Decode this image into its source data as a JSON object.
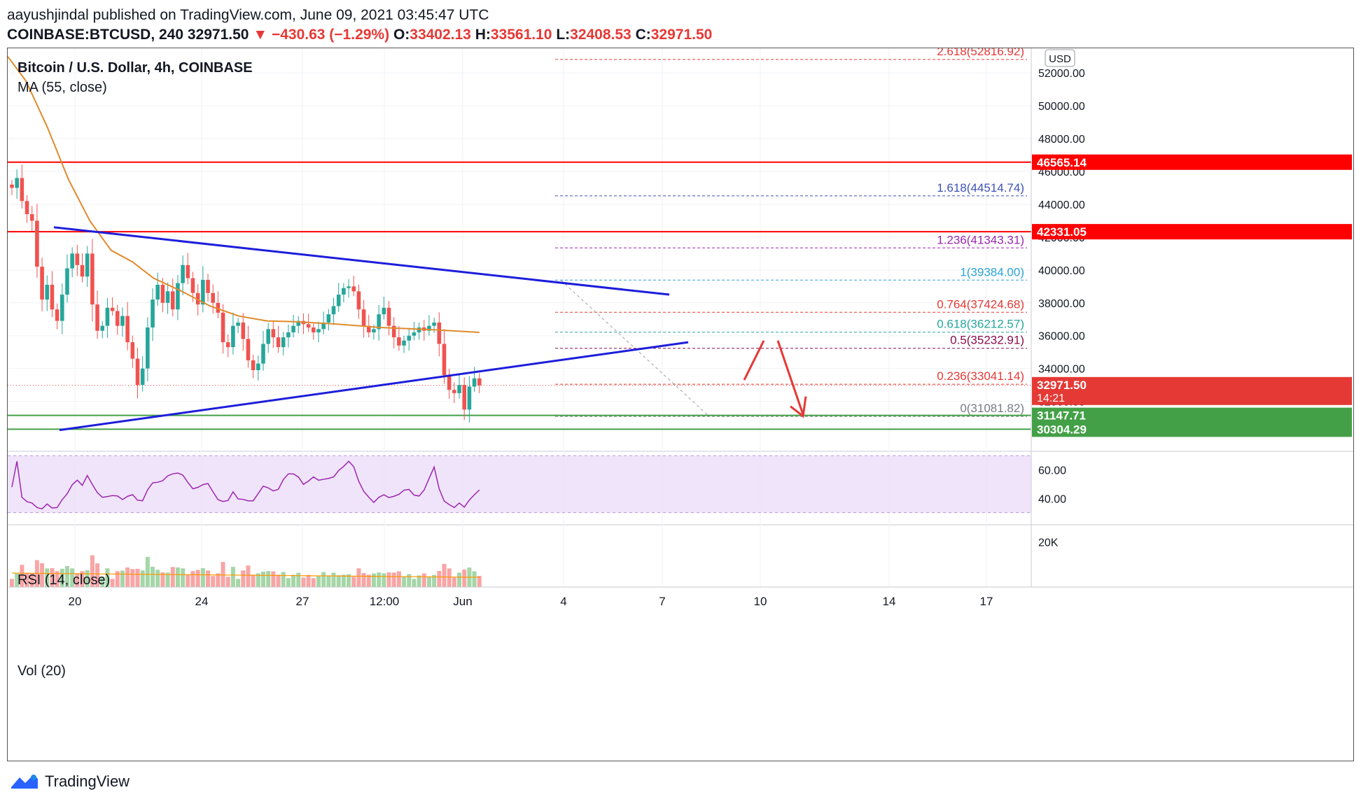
{
  "header": {
    "publisher": "aayushjindal published on TradingView.com, June 09, 2021 03:45:47 UTC",
    "symbol_line": "COINBASE:BTCUSD, 240",
    "last": "32971.50",
    "change": "−430.63 (−1.29%)",
    "o_label": "O:",
    "o": "33402.13",
    "h_label": "H:",
    "h": "33561.10",
    "l_label": "L:",
    "l": "32408.53",
    "c_label": "C:",
    "c": "32971.50",
    "down_arrow": "▼"
  },
  "legend": {
    "title": "Bitcoin / U.S. Dollar, 4h, COINBASE",
    "ma": "MA (55, close)",
    "rsi": "RSI (14, close)",
    "vol": "Vol (20)",
    "currency_badge": "USD"
  },
  "footer": {
    "brand": "TradingView"
  },
  "colors": {
    "up": "#26a69a",
    "down": "#ef5350",
    "ma": "#e08a2c",
    "trendline": "#1d1ddb",
    "resistance": "#ff0000",
    "support": "#43a047",
    "rsi": "#9c27b0",
    "rsi_band": "#e9d8f8",
    "arrow": "#e53935"
  },
  "chart_data": {
    "type": "candlestick",
    "title": "Bitcoin / U.S. Dollar, 4h, COINBASE",
    "ylim": [
      29000,
      53500
    ],
    "x_ticks": [
      "20",
      "24",
      "27",
      "12:00",
      "Jun",
      "4",
      "7",
      "10",
      "14",
      "17"
    ],
    "y_ticks": [
      "52000.00",
      "50000.00",
      "48000.00",
      "46000.00",
      "44000.00",
      "42000.00",
      "40000.00",
      "38000.00",
      "36000.00",
      "34000.00",
      "32000.00"
    ],
    "y_tick_values": [
      52000,
      50000,
      48000,
      46000,
      44000,
      42000,
      40000,
      38000,
      36000,
      34000,
      32000
    ],
    "close_path": [
      45000,
      45600,
      44200,
      43400,
      43000,
      40200,
      38200,
      39100,
      37600,
      36900,
      38500,
      40100,
      41000,
      40300,
      39600,
      41000,
      37900,
      36300,
      36600,
      37700,
      37500,
      36600,
      37200,
      35600,
      34600,
      33000,
      34000,
      36500,
      38200,
      39100,
      38000,
      38700,
      37600,
      39200,
      40300,
      39500,
      38600,
      37900,
      39400,
      38600,
      38000,
      37400,
      35600,
      35300,
      36600,
      36800,
      35800,
      34500,
      33900,
      34300,
      35500,
      36400,
      35900,
      35300,
      35900,
      36200,
      36600,
      36900,
      36700,
      36500,
      36200,
      36400,
      36800,
      37300,
      37800,
      38500,
      38900,
      39000,
      38700,
      37600,
      36600,
      36200,
      36400,
      37300,
      37700,
      36600,
      35900,
      35400,
      35700,
      36000,
      36200,
      36500,
      36300,
      36600,
      36800,
      35500,
      33600,
      32700,
      32500,
      33000,
      31500,
      32900,
      33400,
      32971.5
    ],
    "ma55": [
      [
        0,
        53000
      ],
      [
        10,
        51500
      ],
      [
        25,
        48700
      ],
      [
        40,
        45500
      ],
      [
        55,
        43000
      ],
      [
        70,
        41200
      ],
      [
        85,
        40500
      ],
      [
        100,
        39500
      ],
      [
        120,
        38700
      ],
      [
        140,
        37800
      ],
      [
        160,
        37200
      ],
      [
        180,
        36900
      ],
      [
        200,
        36850
      ],
      [
        230,
        36700
      ],
      [
        260,
        36500
      ],
      [
        300,
        36350
      ],
      [
        330,
        36200
      ]
    ],
    "levels": [
      {
        "label": "46565.14",
        "value": 46565.14,
        "kind": "resistance"
      },
      {
        "label": "42331.05",
        "value": 42331.05,
        "kind": "resistance"
      },
      {
        "label": "31147.71",
        "value": 31147.71,
        "kind": "support"
      },
      {
        "label": "30304.29",
        "value": 30304.29,
        "kind": "support"
      },
      {
        "label": "32971.50",
        "value": 32971.5,
        "kind": "last",
        "sub": "14:21"
      }
    ],
    "fib": [
      {
        "ratio": "2.618",
        "price": "52816.92",
        "value": 52816.92,
        "color": "#e53935"
      },
      {
        "ratio": "1.618",
        "price": "44514.74",
        "value": 44514.74,
        "color": "#3f51b5"
      },
      {
        "ratio": "1.236",
        "price": "41343.31",
        "value": 41343.31,
        "color": "#9c27b0"
      },
      {
        "ratio": "1",
        "price": "39384.00",
        "value": 39384.0,
        "color": "#29a3d6"
      },
      {
        "ratio": "0.764",
        "price": "37424.68",
        "value": 37424.68,
        "color": "#e53935"
      },
      {
        "ratio": "0.618",
        "price": "36212.57",
        "value": 36212.57,
        "color": "#26a69a"
      },
      {
        "ratio": "0.5",
        "price": "35232.91",
        "value": 35232.91,
        "color": "#880e4f"
      },
      {
        "ratio": "0.236",
        "price": "33041.14",
        "value": 33041.14,
        "color": "#e53935"
      },
      {
        "ratio": "0",
        "price": "31081.82",
        "value": 31081.82,
        "color": "#787b86"
      }
    ],
    "rsi": {
      "ticks": [
        "60.00",
        "40.00"
      ],
      "tick_values": [
        60,
        40
      ],
      "band": [
        30,
        70
      ],
      "ylim": [
        22,
        72
      ]
    },
    "volume": {
      "ticks": [
        "20K"
      ],
      "tick_values": [
        20000
      ],
      "ymax": 27000
    }
  }
}
